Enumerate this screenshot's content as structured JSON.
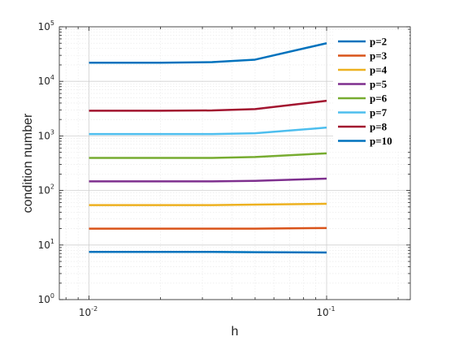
{
  "chart_data": {
    "type": "line",
    "xlabel": "h",
    "ylabel": "condition number",
    "xscale": "log",
    "yscale": "log",
    "xlim": [
      0.0075,
      0.225
    ],
    "ylim": [
      1,
      100000
    ],
    "grid": true,
    "minor_grid": true,
    "legend_position": "top-right",
    "x_ticks": [
      {
        "base": "10",
        "exp": "-2",
        "value": 0.01
      },
      {
        "base": "10",
        "exp": "-1",
        "value": 0.1
      }
    ],
    "y_ticks": [
      {
        "base": "10",
        "exp": "0",
        "value": 1
      },
      {
        "base": "10",
        "exp": "1",
        "value": 10
      },
      {
        "base": "10",
        "exp": "2",
        "value": 100
      },
      {
        "base": "10",
        "exp": "3",
        "value": 1000
      },
      {
        "base": "10",
        "exp": "4",
        "value": 10000
      },
      {
        "base": "10",
        "exp": "5",
        "value": 100000
      }
    ],
    "x": [
      0.01,
      0.02,
      0.033,
      0.05,
      0.1
    ],
    "series": [
      {
        "name": "p=2",
        "color": "#0072BD",
        "values": [
          7.5,
          7.5,
          7.5,
          7.4,
          7.3
        ]
      },
      {
        "name": "p=3",
        "color": "#D95319",
        "values": [
          20,
          20,
          20,
          20,
          20.5
        ]
      },
      {
        "name": "p=4",
        "color": "#EDB120",
        "values": [
          54,
          54,
          54,
          55,
          57
        ]
      },
      {
        "name": "p=5",
        "color": "#7E2F8E",
        "values": [
          147,
          147,
          147,
          150,
          165
        ]
      },
      {
        "name": "p=6",
        "color": "#77AC30",
        "values": [
          395,
          395,
          395,
          410,
          480
        ]
      },
      {
        "name": "p=7",
        "color": "#4DBEEE",
        "values": [
          1080,
          1080,
          1080,
          1120,
          1420
        ]
      },
      {
        "name": "p=8",
        "color": "#A2142F",
        "values": [
          2900,
          2900,
          2930,
          3100,
          4400
        ]
      },
      {
        "name": "p=10",
        "color": "#0072BD",
        "values": [
          22000,
          22000,
          22500,
          25000,
          50000
        ]
      }
    ]
  }
}
